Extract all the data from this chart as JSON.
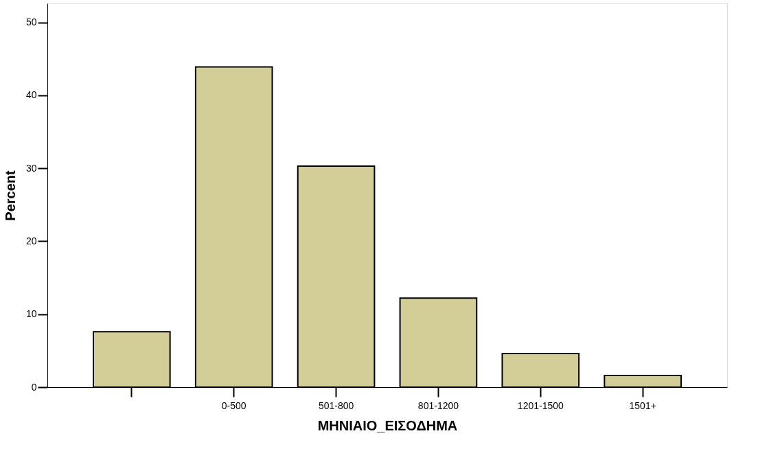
{
  "chart_data": {
    "type": "bar",
    "categories": [
      null,
      "0-500",
      "501-800",
      "801-1200",
      "1201-1500",
      "1501+"
    ],
    "values": [
      7.6,
      43.9,
      30.3,
      12.2,
      4.6,
      1.6
    ],
    "color": "#d3ce97",
    "xlabel": "ΜΗΝΙΑΙΟ_ΕΙΣΟΔΗΜΑ",
    "ylabel": "Percent",
    "ylim": [
      0,
      52.6
    ],
    "yticks": [
      0,
      10,
      20,
      30,
      40,
      50
    ],
    "grid": false
  }
}
